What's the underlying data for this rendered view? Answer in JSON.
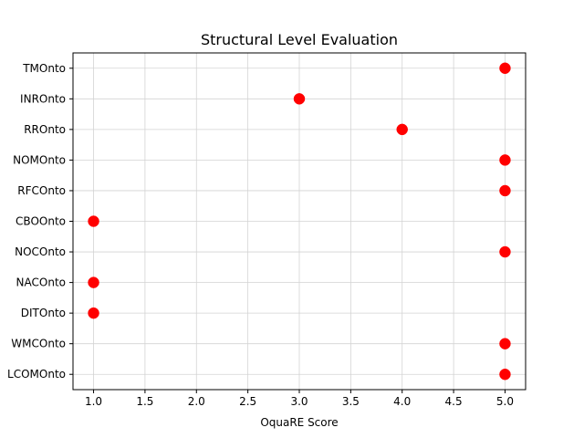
{
  "chart_data": {
    "type": "scatter",
    "title": "Structural Level Evaluation",
    "xlabel": "OquaRE Score",
    "ylabel": "",
    "xlim": [
      0.8,
      5.2
    ],
    "x_ticks": [
      "1.0",
      "1.5",
      "2.0",
      "2.5",
      "3.0",
      "3.5",
      "4.0",
      "4.5",
      "5.0"
    ],
    "categories": [
      "LCOMOnto",
      "WMCOnto",
      "DITOnto",
      "NACOnto",
      "NOCOnto",
      "CBOOnto",
      "RFCOnto",
      "NOMOnto",
      "RROnto",
      "INROnto",
      "TMOnto"
    ],
    "values": [
      5,
      5,
      1,
      1,
      5,
      1,
      5,
      5,
      4,
      3,
      5
    ],
    "grid": true,
    "marker_color": "#ff0000"
  }
}
